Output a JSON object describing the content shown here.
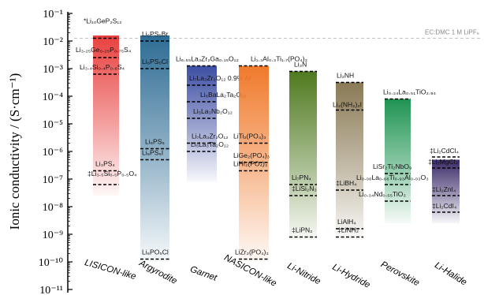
{
  "chart_data": {
    "type": "bar",
    "ylabel": "Ionic conductivity / (S·cm⁻¹)",
    "yscale": "log",
    "ylim_exp": [
      -11,
      -1
    ],
    "yticks": [
      {
        "exp": -1,
        "label": "10⁻¹"
      },
      {
        "exp": -2,
        "label": "10⁻²"
      },
      {
        "exp": -3,
        "label": "10⁻³"
      },
      {
        "exp": -4,
        "label": "10⁻⁴"
      },
      {
        "exp": -5,
        "label": "10⁻⁵"
      },
      {
        "exp": -6,
        "label": "10⁻⁶"
      },
      {
        "exp": -7,
        "label": "10⁻⁷"
      },
      {
        "exp": -8,
        "label": "10⁻⁸"
      },
      {
        "exp": -9,
        "label": "10⁻⁹"
      },
      {
        "exp": -10,
        "label": "10⁻¹⁰"
      },
      {
        "exp": -11,
        "label": "10⁻¹¹"
      }
    ],
    "reference_line": {
      "value_exp": -1.9,
      "label": "EC:DMC 1 M LiPF₆"
    },
    "categories": [
      {
        "name": "LISICON-like",
        "color": "#e8413f",
        "range_exp": [
          -7.6,
          -1.8
        ],
        "compounds": [
          {
            "label": "*Li₁₀GeP₂S₁₂",
            "exp": -1.9
          },
          {
            "label": "Li₃.₂₅Ge₀.₂₅P₀.₇₅S₄",
            "exp": -2.6
          },
          {
            "label": "Li₃.₄Si₀.₄P₀.₆S₄",
            "exp": -3.2
          },
          {
            "label": "Li₃PS₄",
            "exp": -6.7
          },
          {
            "label": "‡Li₃.₅Si₀.₅P₀.₅O₄",
            "exp": -7.2
          }
        ]
      },
      {
        "name": "Argyrodite",
        "color": "#2e6c94",
        "range_exp": [
          -10.0,
          -1.8
        ],
        "compounds": [
          {
            "label": "Li₆PS₅Br",
            "exp": -2.0
          },
          {
            "label": "Li₆PS₅Cl",
            "exp": -3.0
          },
          {
            "label": "Li₆PS₅",
            "exp": -5.9
          },
          {
            "label": "Li₆PS₅I",
            "exp": -6.3
          },
          {
            "label": "Li₆PO₅Cl",
            "exp": -9.9
          }
        ]
      },
      {
        "name": "Garnet",
        "color": "#3e4fa4",
        "range_exp": [
          -7.1,
          -2.9
        ],
        "compounds": [
          {
            "label": "Li₆.₅₅La₃Zr₂Ga₀.₁₅O₁₂",
            "exp": -2.9
          },
          {
            "label": "Li₇La₃Zr₂O₁₂ 0.9% Al",
            "exp": -3.6
          },
          {
            "label": "Li₆BaLa₂Ta₂O₁₂",
            "exp": -4.2
          },
          {
            "label": "Li₅La₃Nb₂O₁₂",
            "exp": -4.8
          },
          {
            "label": "Li₇La₃Zr₂O₁₂",
            "exp": -5.7
          },
          {
            "label": "Li₅La₃Ta₂O₁₂",
            "exp": -6.0
          }
        ]
      },
      {
        "name": "NASICON-like",
        "color": "#f07a2c",
        "range_exp": [
          -10.0,
          -2.9
        ],
        "compounds": [
          {
            "label": "Li₁.₃Al₀.₃Ti₁.₇(PO₄)₃",
            "exp": -2.9
          },
          {
            "label": "LiTi₂(PO₄)₃",
            "exp": -5.7
          },
          {
            "label": "LiGe₂(PO₄)₃",
            "exp": -6.4
          },
          {
            "label": "LiHf₂(PO₄)₃",
            "exp": -6.7
          },
          {
            "label": "LiZr₂(PO₄)₃",
            "exp": -9.9
          }
        ]
      },
      {
        "name": "Li-Nitride",
        "color": "#4f7a1f",
        "range_exp": [
          -9.2,
          -3.1
        ],
        "compounds": [
          {
            "label": "Li₃N",
            "exp": -3.1
          },
          {
            "label": "Li₇PN₄",
            "exp": -7.2
          },
          {
            "label": "‡LiSi₂N₃",
            "exp": -7.6
          },
          {
            "label": "‡LiPN₂",
            "exp": -9.1
          }
        ]
      },
      {
        "name": "Li-Hydride",
        "color": "#8a7a55",
        "range_exp": [
          -9.2,
          -3.5
        ],
        "compounds": [
          {
            "label": "Li₂NH",
            "exp": -3.5
          },
          {
            "label": "Li₃(NH₂)₂I",
            "exp": -4.5
          },
          {
            "label": "‡LiBH₄",
            "exp": -7.4
          },
          {
            "label": "LiAlH₄",
            "exp": -8.8
          },
          {
            "label": "‡LiNH₂",
            "exp": -9.1
          }
        ]
      },
      {
        "name": "Perovskite",
        "color": "#1f9452",
        "range_exp": [
          -8.6,
          -4.1
        ],
        "compounds": [
          {
            "label": "Li₀.₃₄La₀.₅₁TiO₂.₉₄",
            "exp": -4.1
          },
          {
            "label": "LiSr₂Ti₂NbO₉",
            "exp": -6.8
          },
          {
            "label": "Li₀.₀₆La₀.₆₆Ti₀.₉₃Al₀.₀₃O₃",
            "exp": -7.2
          },
          {
            "label": "Li₀.₃₄Nd₀.₅₅TiO₃",
            "exp": -7.8
          }
        ]
      },
      {
        "name": "Li-Halide",
        "color": "#3a2a68",
        "range_exp": [
          -8.6,
          -6.3
        ],
        "compounds": [
          {
            "label": "‡Li₂CdCl₄",
            "exp": -6.2
          },
          {
            "label": "‡Li₂MgCl₄",
            "exp": -6.6
          },
          {
            "label": "‡Li₂ZnI₄",
            "exp": -7.6
          },
          {
            "label": "‡Li₂CdI₄",
            "exp": -8.2
          }
        ]
      }
    ]
  }
}
